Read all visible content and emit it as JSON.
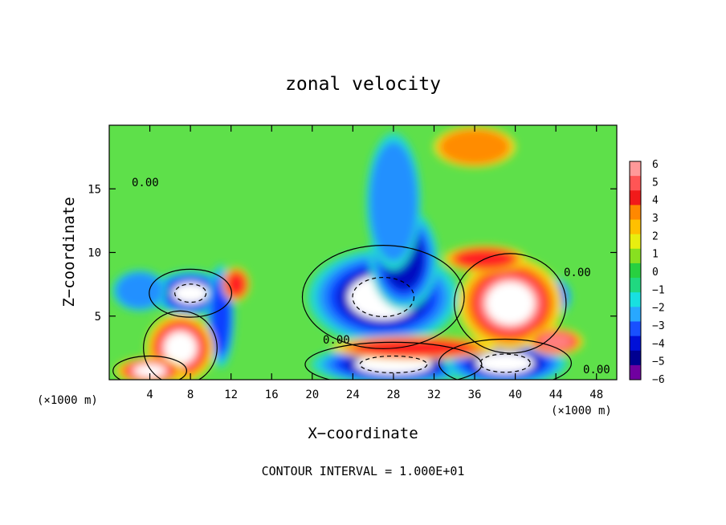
{
  "chart_data": {
    "type": "heatmap",
    "title": "zonal velocity",
    "xlabel": "X−coordinate",
    "ylabel": "Z−coordinate",
    "x_unit": "(×1000 m)",
    "z_unit": "(×1000 m)",
    "xlim": [
      0,
      50
    ],
    "ylim": [
      0,
      20
    ],
    "xticks": [
      4,
      8,
      12,
      16,
      20,
      24,
      28,
      32,
      36,
      40,
      44,
      48
    ],
    "yticks": [
      5,
      10,
      15
    ],
    "colorbar": {
      "labels": [
        "6",
        "5",
        "4",
        "3",
        "2",
        "1",
        "0",
        "−1",
        "−2",
        "−3",
        "−4",
        "−5",
        "−6"
      ],
      "colors": [
        "#ff9999",
        "#ff5555",
        "#f11a1a",
        "#ff8800",
        "#ffc000",
        "#e8ee10",
        "#88e020",
        "#28d040",
        "#20d880",
        "#18e0e0",
        "#28a8ff",
        "#1850ff",
        "#0010d8",
        "#000090",
        "#7000a0"
      ]
    },
    "contour_labels": [
      "0.00",
      "0.00",
      "0.00",
      "0.00"
    ],
    "footer": "CONTOUR INTERVAL = 1.000E+01",
    "features": [
      {
        "kind": "neg",
        "x": 8,
        "z": 6.8,
        "rx": 2.8,
        "rz": 1.3,
        "min": -10
      },
      {
        "kind": "neg",
        "x": 27,
        "z": 6.5,
        "rx": 5.5,
        "rz": 2.8,
        "min": -10
      },
      {
        "kind": "neg",
        "x": 29,
        "z": 9.5,
        "rx": 2.5,
        "rz": 3,
        "min": -7
      },
      {
        "kind": "neg",
        "x": 28,
        "z": 14,
        "rx": 2,
        "rz": 4,
        "min": -4
      },
      {
        "kind": "neg",
        "x": 28,
        "z": 1.2,
        "rx": 6,
        "rz": 1.2,
        "min": -10
      },
      {
        "kind": "neg",
        "x": 39,
        "z": 1.3,
        "rx": 4.5,
        "rz": 1.3,
        "min": -10
      },
      {
        "kind": "neg",
        "x": 43.5,
        "z": 6.5,
        "rx": 1.5,
        "rz": 1.2,
        "min": -6
      },
      {
        "kind": "neg",
        "x": 3,
        "z": 7,
        "rx": 2,
        "rz": 1.2,
        "min": -4
      },
      {
        "kind": "neg",
        "x": 11,
        "z": 5,
        "rx": 1,
        "rz": 3,
        "min": -5
      },
      {
        "kind": "pos",
        "x": 7,
        "z": 2.5,
        "rx": 2.5,
        "rz": 2,
        "max": 10
      },
      {
        "kind": "pos",
        "x": 4,
        "z": 0.7,
        "rx": 2.5,
        "rz": 0.8,
        "max": 9
      },
      {
        "kind": "pos",
        "x": 30,
        "z": 2.5,
        "rx": 6,
        "rz": 0.7,
        "max": 6
      },
      {
        "kind": "pos",
        "x": 39.5,
        "z": 6,
        "rx": 3.8,
        "rz": 2.7,
        "max": 10
      },
      {
        "kind": "pos",
        "x": 44,
        "z": 3,
        "rx": 2,
        "rz": 0.8,
        "max": 8
      },
      {
        "kind": "pos",
        "x": 12.5,
        "z": 7.5,
        "rx": 1,
        "rz": 1,
        "max": 6
      },
      {
        "kind": "pos",
        "x": 37,
        "z": 9.5,
        "rx": 3,
        "rz": 0.8,
        "max": 5
      },
      {
        "kind": "pos",
        "x": 36,
        "z": 18.3,
        "rx": 3,
        "rz": 1.2,
        "max": 4
      }
    ]
  }
}
